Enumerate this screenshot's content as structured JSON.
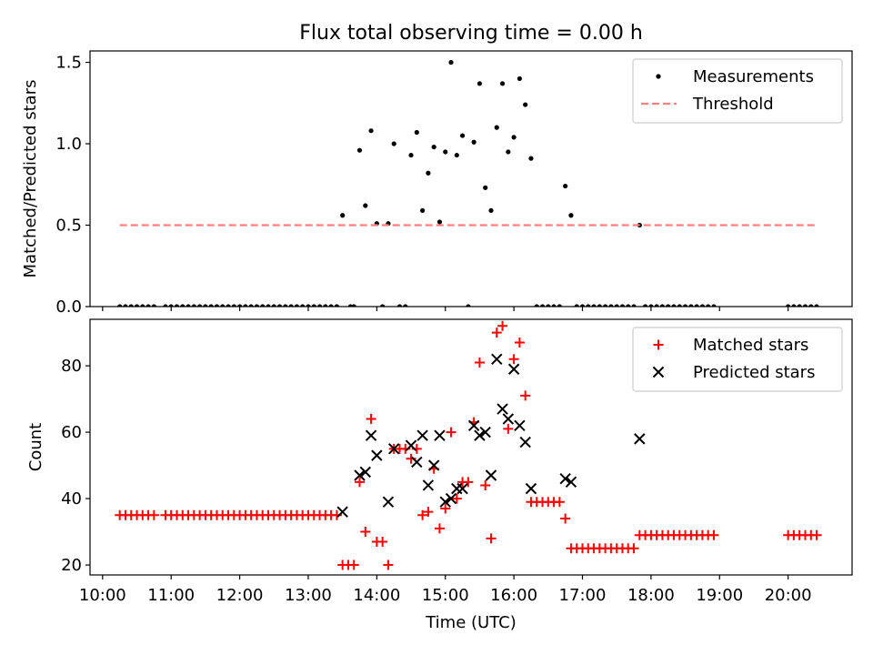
{
  "chart_data": [
    {
      "type": "scatter",
      "title": "Flux total observing time = 0.00 h",
      "xlabel": "",
      "ylabel": "Matched/Predicted stars",
      "xlim": [
        "09:49",
        "20:56"
      ],
      "ylim": [
        0,
        1.57
      ],
      "yticks": [
        0.0,
        0.5,
        1.0,
        1.5
      ],
      "ytick_labels": [
        "0.0",
        "0.5",
        "1.0",
        "1.5"
      ],
      "grid": false,
      "legend_position": "top-right",
      "series": [
        {
          "name": "Measurements",
          "kind": "points",
          "color": "#000000",
          "points": [
            [
              "10:15",
              0
            ],
            [
              "10:20",
              0
            ],
            [
              "10:25",
              0
            ],
            [
              "10:30",
              0
            ],
            [
              "10:35",
              0
            ],
            [
              "10:40",
              0
            ],
            [
              "10:45",
              0
            ],
            [
              "10:55",
              0
            ],
            [
              "11:00",
              0
            ],
            [
              "11:05",
              0
            ],
            [
              "11:10",
              0
            ],
            [
              "11:15",
              0
            ],
            [
              "11:20",
              0
            ],
            [
              "11:25",
              0
            ],
            [
              "11:30",
              0
            ],
            [
              "11:35",
              0
            ],
            [
              "11:40",
              0
            ],
            [
              "11:45",
              0
            ],
            [
              "11:50",
              0
            ],
            [
              "11:55",
              0
            ],
            [
              "12:00",
              0
            ],
            [
              "12:05",
              0
            ],
            [
              "12:10",
              0
            ],
            [
              "12:15",
              0
            ],
            [
              "12:20",
              0
            ],
            [
              "12:25",
              0
            ],
            [
              "12:30",
              0
            ],
            [
              "12:35",
              0
            ],
            [
              "12:40",
              0
            ],
            [
              "12:45",
              0
            ],
            [
              "12:50",
              0
            ],
            [
              "12:55",
              0
            ],
            [
              "13:00",
              0
            ],
            [
              "13:05",
              0
            ],
            [
              "13:10",
              0
            ],
            [
              "13:15",
              0
            ],
            [
              "13:20",
              0
            ],
            [
              "13:25",
              0
            ],
            [
              "13:30",
              0.56
            ],
            [
              "13:37",
              0
            ],
            [
              "13:40",
              0
            ],
            [
              "13:45",
              0.96
            ],
            [
              "13:50",
              0.62
            ],
            [
              "13:55",
              1.08
            ],
            [
              "14:00",
              0.51
            ],
            [
              "14:05",
              0
            ],
            [
              "14:10",
              0.51
            ],
            [
              "14:15",
              1.0
            ],
            [
              "14:20",
              0
            ],
            [
              "14:25",
              0
            ],
            [
              "14:30",
              0.93
            ],
            [
              "14:35",
              1.07
            ],
            [
              "14:40",
              0.59
            ],
            [
              "14:45",
              0.82
            ],
            [
              "14:50",
              0.98
            ],
            [
              "14:55",
              0.52
            ],
            [
              "15:00",
              0.95
            ],
            [
              "15:05",
              1.5
            ],
            [
              "15:10",
              0.93
            ],
            [
              "15:15",
              1.05
            ],
            [
              "15:20",
              0
            ],
            [
              "15:25",
              1.01
            ],
            [
              "15:30",
              1.37
            ],
            [
              "15:35",
              0.73
            ],
            [
              "15:40",
              0.59
            ],
            [
              "15:45",
              1.1
            ],
            [
              "15:50",
              1.37
            ],
            [
              "15:55",
              0.95
            ],
            [
              "16:00",
              1.04
            ],
            [
              "16:05",
              1.4
            ],
            [
              "16:10",
              1.24
            ],
            [
              "16:15",
              0.91
            ],
            [
              "16:20",
              0
            ],
            [
              "16:25",
              0
            ],
            [
              "16:30",
              0
            ],
            [
              "16:35",
              0
            ],
            [
              "16:40",
              0
            ],
            [
              "16:45",
              0.74
            ],
            [
              "16:50",
              0.56
            ],
            [
              "16:55",
              0
            ],
            [
              "17:00",
              0
            ],
            [
              "17:05",
              0
            ],
            [
              "17:10",
              0
            ],
            [
              "17:15",
              0
            ],
            [
              "17:20",
              0
            ],
            [
              "17:25",
              0
            ],
            [
              "17:30",
              0
            ],
            [
              "17:35",
              0
            ],
            [
              "17:40",
              0
            ],
            [
              "17:45",
              0
            ],
            [
              "17:50",
              0.5
            ],
            [
              "17:55",
              0
            ],
            [
              "18:00",
              0
            ],
            [
              "18:05",
              0
            ],
            [
              "18:10",
              0
            ],
            [
              "18:15",
              0
            ],
            [
              "18:20",
              0
            ],
            [
              "18:25",
              0
            ],
            [
              "18:30",
              0
            ],
            [
              "18:35",
              0
            ],
            [
              "18:40",
              0
            ],
            [
              "18:45",
              0
            ],
            [
              "18:50",
              0
            ],
            [
              "18:55",
              0
            ],
            [
              "20:00",
              0
            ],
            [
              "20:05",
              0
            ],
            [
              "20:10",
              0
            ],
            [
              "20:15",
              0
            ],
            [
              "20:20",
              0
            ],
            [
              "20:25",
              0
            ]
          ]
        },
        {
          "name": "Threshold",
          "kind": "dashed-line",
          "color": "#ff7f7f",
          "points": [
            [
              "10:15",
              0.5
            ],
            [
              "20:25",
              0.5
            ]
          ]
        }
      ]
    },
    {
      "type": "scatter",
      "title": "",
      "xlabel": "Time (UTC)",
      "ylabel": "Count",
      "xlim": [
        "09:49",
        "20:56"
      ],
      "ylim": [
        17,
        94
      ],
      "yticks": [
        20,
        40,
        60,
        80
      ],
      "ytick_labels": [
        "20",
        "40",
        "60",
        "80"
      ],
      "xticks": [
        "10:00",
        "11:00",
        "12:00",
        "13:00",
        "14:00",
        "15:00",
        "16:00",
        "17:00",
        "18:00",
        "19:00",
        "20:00"
      ],
      "grid": false,
      "legend_position": "top-right",
      "series": [
        {
          "name": "Matched stars",
          "kind": "plus",
          "color": "#ff0000",
          "points": [
            [
              "10:15",
              35
            ],
            [
              "10:20",
              35
            ],
            [
              "10:25",
              35
            ],
            [
              "10:30",
              35
            ],
            [
              "10:35",
              35
            ],
            [
              "10:40",
              35
            ],
            [
              "10:45",
              35
            ],
            [
              "10:55",
              35
            ],
            [
              "11:00",
              35
            ],
            [
              "11:05",
              35
            ],
            [
              "11:10",
              35
            ],
            [
              "11:15",
              35
            ],
            [
              "11:20",
              35
            ],
            [
              "11:25",
              35
            ],
            [
              "11:30",
              35
            ],
            [
              "11:35",
              35
            ],
            [
              "11:40",
              35
            ],
            [
              "11:45",
              35
            ],
            [
              "11:50",
              35
            ],
            [
              "11:55",
              35
            ],
            [
              "12:00",
              35
            ],
            [
              "12:05",
              35
            ],
            [
              "12:10",
              35
            ],
            [
              "12:15",
              35
            ],
            [
              "12:20",
              35
            ],
            [
              "12:25",
              35
            ],
            [
              "12:30",
              35
            ],
            [
              "12:35",
              35
            ],
            [
              "12:40",
              35
            ],
            [
              "12:45",
              35
            ],
            [
              "12:50",
              35
            ],
            [
              "12:55",
              35
            ],
            [
              "13:00",
              35
            ],
            [
              "13:05",
              35
            ],
            [
              "13:10",
              35
            ],
            [
              "13:15",
              35
            ],
            [
              "13:20",
              35
            ],
            [
              "13:25",
              35
            ],
            [
              "13:30",
              20
            ],
            [
              "13:35",
              20
            ],
            [
              "13:40",
              20
            ],
            [
              "13:45",
              45
            ],
            [
              "13:50",
              30
            ],
            [
              "13:55",
              64
            ],
            [
              "14:00",
              27
            ],
            [
              "14:05",
              27
            ],
            [
              "14:10",
              20
            ],
            [
              "14:15",
              55
            ],
            [
              "14:20",
              55
            ],
            [
              "14:25",
              55
            ],
            [
              "14:30",
              52
            ],
            [
              "14:35",
              55
            ],
            [
              "14:40",
              35
            ],
            [
              "14:45",
              36
            ],
            [
              "14:50",
              49
            ],
            [
              "14:55",
              31
            ],
            [
              "15:00",
              37
            ],
            [
              "15:05",
              60
            ],
            [
              "15:10",
              40
            ],
            [
              "15:15",
              45
            ],
            [
              "15:20",
              45
            ],
            [
              "15:25",
              63
            ],
            [
              "15:30",
              81
            ],
            [
              "15:35",
              44
            ],
            [
              "15:40",
              28
            ],
            [
              "15:45",
              90
            ],
            [
              "15:50",
              92
            ],
            [
              "15:55",
              61
            ],
            [
              "16:00",
              82
            ],
            [
              "16:05",
              87
            ],
            [
              "16:10",
              71
            ],
            [
              "16:15",
              39
            ],
            [
              "16:20",
              39
            ],
            [
              "16:25",
              39
            ],
            [
              "16:30",
              39
            ],
            [
              "16:35",
              39
            ],
            [
              "16:40",
              39
            ],
            [
              "16:45",
              34
            ],
            [
              "16:50",
              25
            ],
            [
              "16:55",
              25
            ],
            [
              "17:00",
              25
            ],
            [
              "17:05",
              25
            ],
            [
              "17:10",
              25
            ],
            [
              "17:15",
              25
            ],
            [
              "17:20",
              25
            ],
            [
              "17:25",
              25
            ],
            [
              "17:30",
              25
            ],
            [
              "17:35",
              25
            ],
            [
              "17:40",
              25
            ],
            [
              "17:45",
              25
            ],
            [
              "17:50",
              29
            ],
            [
              "17:55",
              29
            ],
            [
              "18:00",
              29
            ],
            [
              "18:05",
              29
            ],
            [
              "18:10",
              29
            ],
            [
              "18:15",
              29
            ],
            [
              "18:20",
              29
            ],
            [
              "18:25",
              29
            ],
            [
              "18:30",
              29
            ],
            [
              "18:35",
              29
            ],
            [
              "18:40",
              29
            ],
            [
              "18:45",
              29
            ],
            [
              "18:50",
              29
            ],
            [
              "18:55",
              29
            ],
            [
              "20:00",
              29
            ],
            [
              "20:05",
              29
            ],
            [
              "20:10",
              29
            ],
            [
              "20:15",
              29
            ],
            [
              "20:20",
              29
            ],
            [
              "20:25",
              29
            ]
          ]
        },
        {
          "name": "Predicted stars",
          "kind": "x",
          "color": "#000000",
          "points": [
            [
              "13:30",
              36
            ],
            [
              "13:45",
              47
            ],
            [
              "13:50",
              48
            ],
            [
              "13:55",
              59
            ],
            [
              "14:00",
              53
            ],
            [
              "14:10",
              39
            ],
            [
              "14:15",
              55
            ],
            [
              "14:30",
              56
            ],
            [
              "14:35",
              51
            ],
            [
              "14:40",
              59
            ],
            [
              "14:45",
              44
            ],
            [
              "14:50",
              50
            ],
            [
              "14:55",
              59
            ],
            [
              "15:00",
              39
            ],
            [
              "15:05",
              40
            ],
            [
              "15:10",
              43
            ],
            [
              "15:15",
              43
            ],
            [
              "15:25",
              62
            ],
            [
              "15:30",
              59
            ],
            [
              "15:35",
              60
            ],
            [
              "15:40",
              47
            ],
            [
              "15:45",
              82
            ],
            [
              "15:50",
              67
            ],
            [
              "15:55",
              64
            ],
            [
              "16:00",
              79
            ],
            [
              "16:05",
              62
            ],
            [
              "16:10",
              57
            ],
            [
              "16:15",
              43
            ],
            [
              "16:45",
              46
            ],
            [
              "16:50",
              45
            ],
            [
              "17:50",
              58
            ]
          ]
        }
      ]
    }
  ]
}
